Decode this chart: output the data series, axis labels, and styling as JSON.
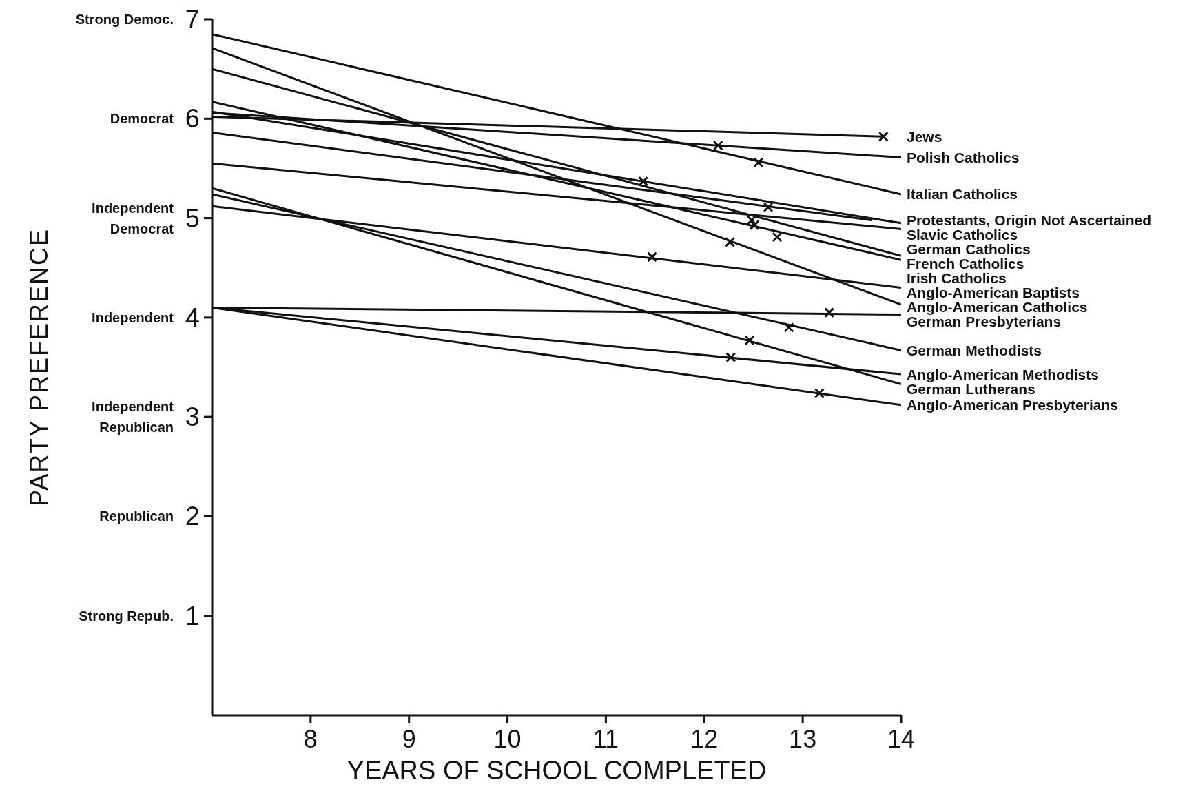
{
  "chart_data": {
    "type": "line",
    "xlabel": "YEARS OF SCHOOL COMPLETED",
    "ylabel": "PARTY PREFERENCE",
    "xlim": [
      7,
      14
    ],
    "xticks": [
      8,
      9,
      10,
      11,
      12,
      13,
      14
    ],
    "ylim": [
      0,
      7
    ],
    "yticks": [
      {
        "value": 1,
        "label": "Strong Repub. 1"
      },
      {
        "value": 2,
        "label": "Republican 2"
      },
      {
        "value": 3,
        "label": "Independent Republican 3"
      },
      {
        "value": 4,
        "label": "Independent 4"
      },
      {
        "value": 5,
        "label": "Independent Democrat 5"
      },
      {
        "value": 6,
        "label": "Democrat 6"
      },
      {
        "value": 7,
        "label": "Strong Democ. 7"
      }
    ],
    "grid": false,
    "series": [
      {
        "name": "Jews",
        "color": "#111111",
        "x": [
          7,
          13.82
        ],
        "values": [
          6.02,
          5.82
        ]
      },
      {
        "name": "Polish Catholics",
        "color": "#111111",
        "x": [
          7,
          14
        ],
        "values": [
          6.06,
          5.61
        ]
      },
      {
        "name": "Italian Catholics",
        "color": "#111111",
        "x": [
          7,
          14
        ],
        "values": [
          6.85,
          5.24
        ]
      },
      {
        "name": "Protestants, Origin Not Ascertained",
        "color": "#111111",
        "x": [
          7,
          13.7
        ],
        "values": [
          5.86,
          4.98
        ]
      },
      {
        "name": "Slavic Catholics",
        "color": "#111111",
        "x": [
          7,
          14
        ],
        "values": [
          6.07,
          4.95
        ]
      },
      {
        "name": "German Catholics",
        "color": "#111111",
        "x": [
          7,
          14
        ],
        "values": [
          5.55,
          4.89
        ]
      },
      {
        "name": "French Catholics",
        "color": "#111111",
        "x": [
          7,
          14
        ],
        "values": [
          6.5,
          4.62
        ]
      },
      {
        "name": "Irish Catholics",
        "color": "#111111",
        "x": [
          7,
          14
        ],
        "values": [
          6.17,
          4.58
        ]
      },
      {
        "name": "Anglo-American Baptists",
        "color": "#111111",
        "x": [
          7,
          14
        ],
        "values": [
          5.12,
          4.3
        ]
      },
      {
        "name": "Anglo-American Catholics",
        "color": "#111111",
        "x": [
          7,
          14
        ],
        "values": [
          6.71,
          4.13
        ]
      },
      {
        "name": "German Presbyterians",
        "color": "#111111",
        "x": [
          7,
          14
        ],
        "values": [
          4.1,
          4.03
        ]
      },
      {
        "name": "German Methodists",
        "color": "#111111",
        "x": [
          7,
          14
        ],
        "values": [
          5.24,
          3.67
        ]
      },
      {
        "name": "Anglo-American Methodists",
        "color": "#111111",
        "x": [
          7,
          14
        ],
        "values": [
          4.1,
          3.43
        ]
      },
      {
        "name": "German Lutherans",
        "color": "#111111",
        "x": [
          7,
          14
        ],
        "values": [
          5.3,
          3.33
        ]
      },
      {
        "name": "Anglo-American Presbyterians",
        "color": "#111111",
        "x": [
          7,
          14
        ],
        "values": [
          4.1,
          3.12
        ]
      },
      {
        "type": "scatter",
        "marker": "cross",
        "color": "#111111",
        "x": [
          13.82,
          12.14,
          12.55,
          12.65,
          11.38,
          12.48,
          12.51,
          12.74,
          11.47,
          12.26,
          13.27,
          12.86,
          12.27,
          12.46,
          13.17
        ],
        "values": [
          5.82,
          5.73,
          5.56,
          5.11,
          5.37,
          4.98,
          4.93,
          4.81,
          4.61,
          4.76,
          4.05,
          3.9,
          3.6,
          3.77,
          3.24
        ]
      }
    ]
  }
}
